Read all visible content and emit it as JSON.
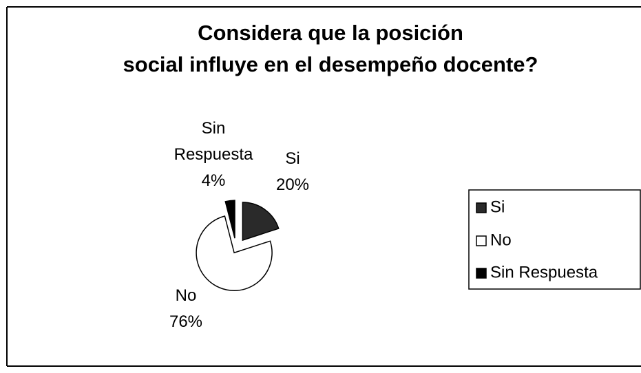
{
  "chart_data": {
    "type": "pie",
    "title": "Considera que la posición social influye en el desempeño docente?",
    "categories": [
      "Si",
      "No",
      "Sin Respuesta"
    ],
    "values": [
      20,
      76,
      4
    ],
    "value_labels": [
      "20%",
      "76%",
      "4%"
    ],
    "colors": [
      "#2a2a2a",
      "#ffffff",
      "#000000"
    ],
    "legend": "right"
  }
}
